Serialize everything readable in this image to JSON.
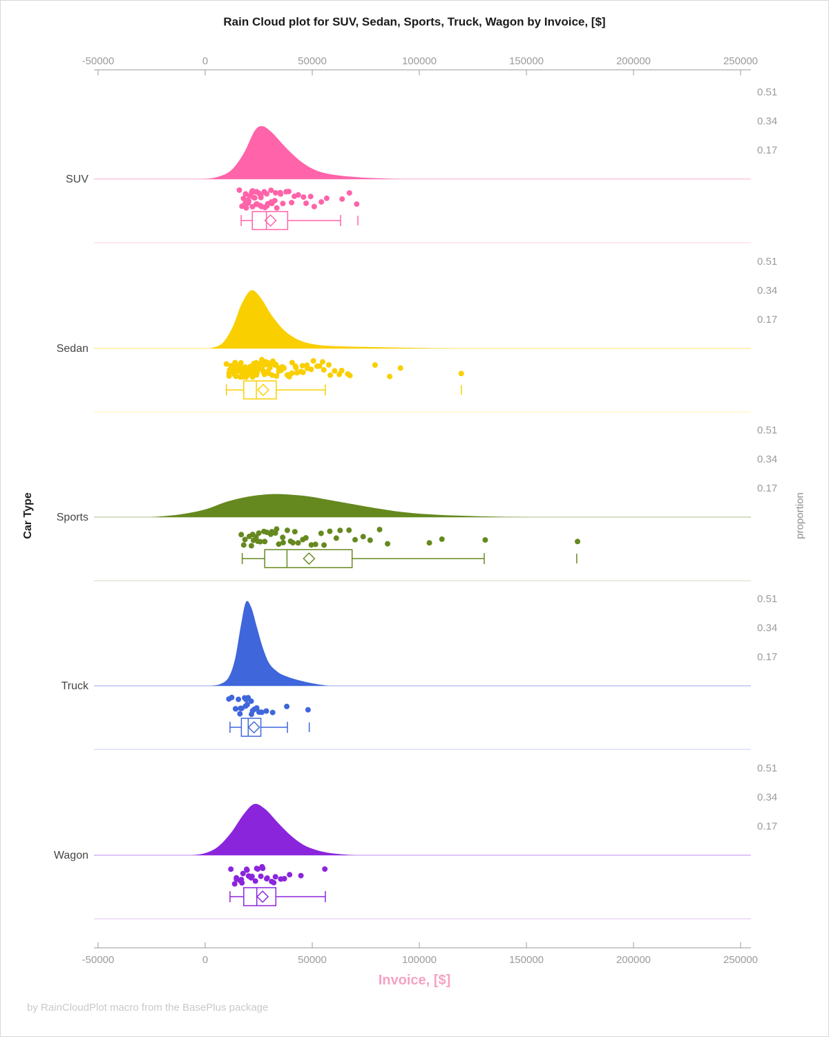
{
  "figure": {
    "title": "Rain Cloud plot for SUV, Sedan, Sports, Truck, Wagon by Invoice, [$]",
    "y_axis_label": "Car Type",
    "right_axis_label": "proportion",
    "x_axis_label": "Invoice, [$]",
    "footer": "by RainCloudPlot macro from the BasePlus package"
  },
  "chart_data": {
    "type": "raincloud",
    "title": "Rain Cloud plot for SUV, Sedan, Sports, Truck, Wagon by Invoice, [$]",
    "xlabel": "Invoice, [$]",
    "ylabel": "Car Type",
    "right_axis_label": "proportion",
    "x_range": [
      -50000,
      250000
    ],
    "x_ticks": [
      -50000,
      0,
      50000,
      100000,
      150000,
      200000,
      250000
    ],
    "proportion_ticks": [
      0.51,
      0.34,
      0.17
    ],
    "axis_color": "#999999",
    "tick_label_color": "#9b9b9b",
    "category_label_color": "#444444",
    "x_axis_title_color": "#f5a2c4",
    "footer_color": "#c9c9c9",
    "legend": "none",
    "grid": "off",
    "series": [
      {
        "name": "SUV",
        "color": "#ff63a9",
        "density": [
          [
            -2000,
            0
          ],
          [
            5000,
            0.01
          ],
          [
            12000,
            0.05
          ],
          [
            18000,
            0.15
          ],
          [
            23000,
            0.28
          ],
          [
            26500,
            0.31
          ],
          [
            31000,
            0.275
          ],
          [
            38000,
            0.18
          ],
          [
            45000,
            0.1
          ],
          [
            52000,
            0.05
          ],
          [
            60000,
            0.025
          ],
          [
            70000,
            0.012
          ],
          [
            80000,
            0.005
          ],
          [
            92000,
            0
          ]
        ],
        "points": [
          16600,
          17400,
          18100,
          18300,
          19000,
          19200,
          19600,
          20100,
          20400,
          20900,
          21200,
          21500,
          21900,
          22300,
          22400,
          22800,
          23100,
          23300,
          23700,
          24000,
          24300,
          24700,
          25200,
          25400,
          25900,
          26300,
          26800,
          27300,
          27700,
          28200,
          28800,
          29400,
          30100,
          30700,
          31400,
          32200,
          33000,
          33900,
          34800,
          35800,
          36900,
          38000,
          39300,
          40600,
          42100,
          43700,
          45400,
          47300,
          49300,
          51500,
          53800,
          56300,
          63300,
          66800,
          71300
        ],
        "box": {
          "whisker_low": 16800,
          "q1": 22000,
          "median": 28600,
          "q3": 38500,
          "whisker_high": 63200,
          "mean": 30500,
          "outliers": [
            71300
          ]
        }
      },
      {
        "name": "Sedan",
        "color": "#f9cf00",
        "density": [
          [
            2000,
            0
          ],
          [
            8000,
            0.03
          ],
          [
            13000,
            0.13
          ],
          [
            17000,
            0.26
          ],
          [
            21500,
            0.34
          ],
          [
            26000,
            0.295
          ],
          [
            31000,
            0.195
          ],
          [
            37000,
            0.105
          ],
          [
            44000,
            0.048
          ],
          [
            52000,
            0.022
          ],
          [
            62000,
            0.013
          ],
          [
            75000,
            0.009
          ],
          [
            90000,
            0.005
          ],
          [
            105000,
            0.002
          ],
          [
            118000,
            0
          ]
        ],
        "points": [
          10000,
          10600,
          11200,
          11700,
          12100,
          12500,
          12800,
          13100,
          13400,
          13700,
          14000,
          14200,
          14500,
          14700,
          14900,
          15100,
          15300,
          15500,
          15700,
          15900,
          16100,
          16300,
          16500,
          16700,
          16900,
          17100,
          17300,
          17500,
          17700,
          17900,
          18100,
          18300,
          18500,
          18700,
          18900,
          19100,
          19300,
          19500,
          19700,
          19900,
          20100,
          20300,
          20500,
          20700,
          20900,
          21100,
          21300,
          21500,
          21700,
          21900,
          22100,
          22300,
          22500,
          22700,
          22900,
          23100,
          23300,
          23500,
          23800,
          24000,
          24300,
          24500,
          24800,
          25000,
          25300,
          25600,
          25900,
          26200,
          26500,
          26800,
          27100,
          27400,
          27700,
          28000,
          28400,
          28800,
          29200,
          29600,
          30000,
          30400,
          30800,
          31200,
          31700,
          32200,
          32700,
          33200,
          33700,
          34200,
          34800,
          35400,
          36000,
          36600,
          37200,
          37900,
          38600,
          39300,
          40000,
          40800,
          41600,
          42400,
          43300,
          44200,
          45100,
          46100,
          47100,
          48200,
          49300,
          50500,
          51700,
          53000,
          54400,
          55800,
          57300,
          58900,
          60600,
          62400,
          64300,
          66300,
          67500,
          79000,
          86800,
          91400,
          119600
        ],
        "box": {
          "whisker_low": 9900,
          "q1": 18000,
          "median": 23900,
          "q3": 33200,
          "whisker_high": 56100,
          "mean": 27100,
          "outliers": [
            119600
          ]
        }
      },
      {
        "name": "Sports",
        "color": "#65891f",
        "density": [
          [
            -25000,
            0
          ],
          [
            -12000,
            0.015
          ],
          [
            0,
            0.045
          ],
          [
            10000,
            0.09
          ],
          [
            20000,
            0.12
          ],
          [
            30000,
            0.134
          ],
          [
            38000,
            0.133
          ],
          [
            48000,
            0.122
          ],
          [
            58000,
            0.1
          ],
          [
            68000,
            0.078
          ],
          [
            80000,
            0.052
          ],
          [
            92000,
            0.03
          ],
          [
            105000,
            0.016
          ],
          [
            120000,
            0.008
          ],
          [
            135000,
            0.003
          ],
          [
            150000,
            0
          ]
        ],
        "points": [
          17300,
          18400,
          19200,
          20100,
          21000,
          21900,
          22800,
          23700,
          24600,
          25500,
          26400,
          27300,
          28200,
          29200,
          30200,
          31200,
          32300,
          33400,
          34500,
          35700,
          36900,
          38200,
          39500,
          40900,
          42400,
          44000,
          45700,
          47500,
          49400,
          51400,
          53500,
          55800,
          58200,
          60800,
          63600,
          66600,
          69800,
          73200,
          77000,
          81000,
          85500,
          105000,
          110000,
          130300,
          173500
        ],
        "box": {
          "whisker_low": 17300,
          "q1": 27800,
          "median": 38200,
          "q3": 68600,
          "whisker_high": 130300,
          "mean": 48500,
          "outliers": [
            173500
          ]
        }
      },
      {
        "name": "Truck",
        "color": "#3f66db",
        "density": [
          [
            2000,
            0
          ],
          [
            7000,
            0.01
          ],
          [
            11000,
            0.05
          ],
          [
            14000,
            0.16
          ],
          [
            16500,
            0.34
          ],
          [
            19000,
            0.49
          ],
          [
            21500,
            0.46
          ],
          [
            24000,
            0.35
          ],
          [
            27000,
            0.22
          ],
          [
            30000,
            0.13
          ],
          [
            34000,
            0.08
          ],
          [
            38000,
            0.055
          ],
          [
            43000,
            0.035
          ],
          [
            48000,
            0.02
          ],
          [
            53000,
            0.008
          ],
          [
            58000,
            0
          ]
        ],
        "points": [
          11600,
          12900,
          13900,
          14700,
          15400,
          16100,
          16700,
          17300,
          17900,
          18500,
          19100,
          19700,
          20300,
          21000,
          21700,
          22500,
          23400,
          24400,
          25500,
          26700,
          28200,
          31000,
          38500,
          48600
        ],
        "box": {
          "whisker_low": 11600,
          "q1": 16900,
          "median": 20100,
          "q3": 26000,
          "whisker_high": 38400,
          "mean": 22800,
          "outliers": [
            48600
          ]
        }
      },
      {
        "name": "Wagon",
        "color": "#8a25dc",
        "density": [
          [
            -6000,
            0
          ],
          [
            0,
            0.012
          ],
          [
            6000,
            0.05
          ],
          [
            12000,
            0.13
          ],
          [
            18000,
            0.24
          ],
          [
            23000,
            0.3
          ],
          [
            28000,
            0.27
          ],
          [
            34000,
            0.19
          ],
          [
            40000,
            0.115
          ],
          [
            46000,
            0.06
          ],
          [
            52000,
            0.03
          ],
          [
            58000,
            0.013
          ],
          [
            64000,
            0.005
          ],
          [
            70000,
            0
          ]
        ],
        "points": [
          11900,
          13200,
          14300,
          15200,
          16000,
          16800,
          17500,
          18200,
          18900,
          19600,
          20300,
          21000,
          21700,
          22400,
          23100,
          23900,
          24700,
          25500,
          26400,
          27300,
          28300,
          29400,
          30600,
          31900,
          33300,
          34900,
          36700,
          40000,
          45000,
          56000
        ],
        "box": {
          "whisker_low": 11600,
          "q1": 18000,
          "median": 24100,
          "q3": 33000,
          "whisker_high": 56100,
          "mean": 26800,
          "outliers": []
        }
      }
    ]
  }
}
